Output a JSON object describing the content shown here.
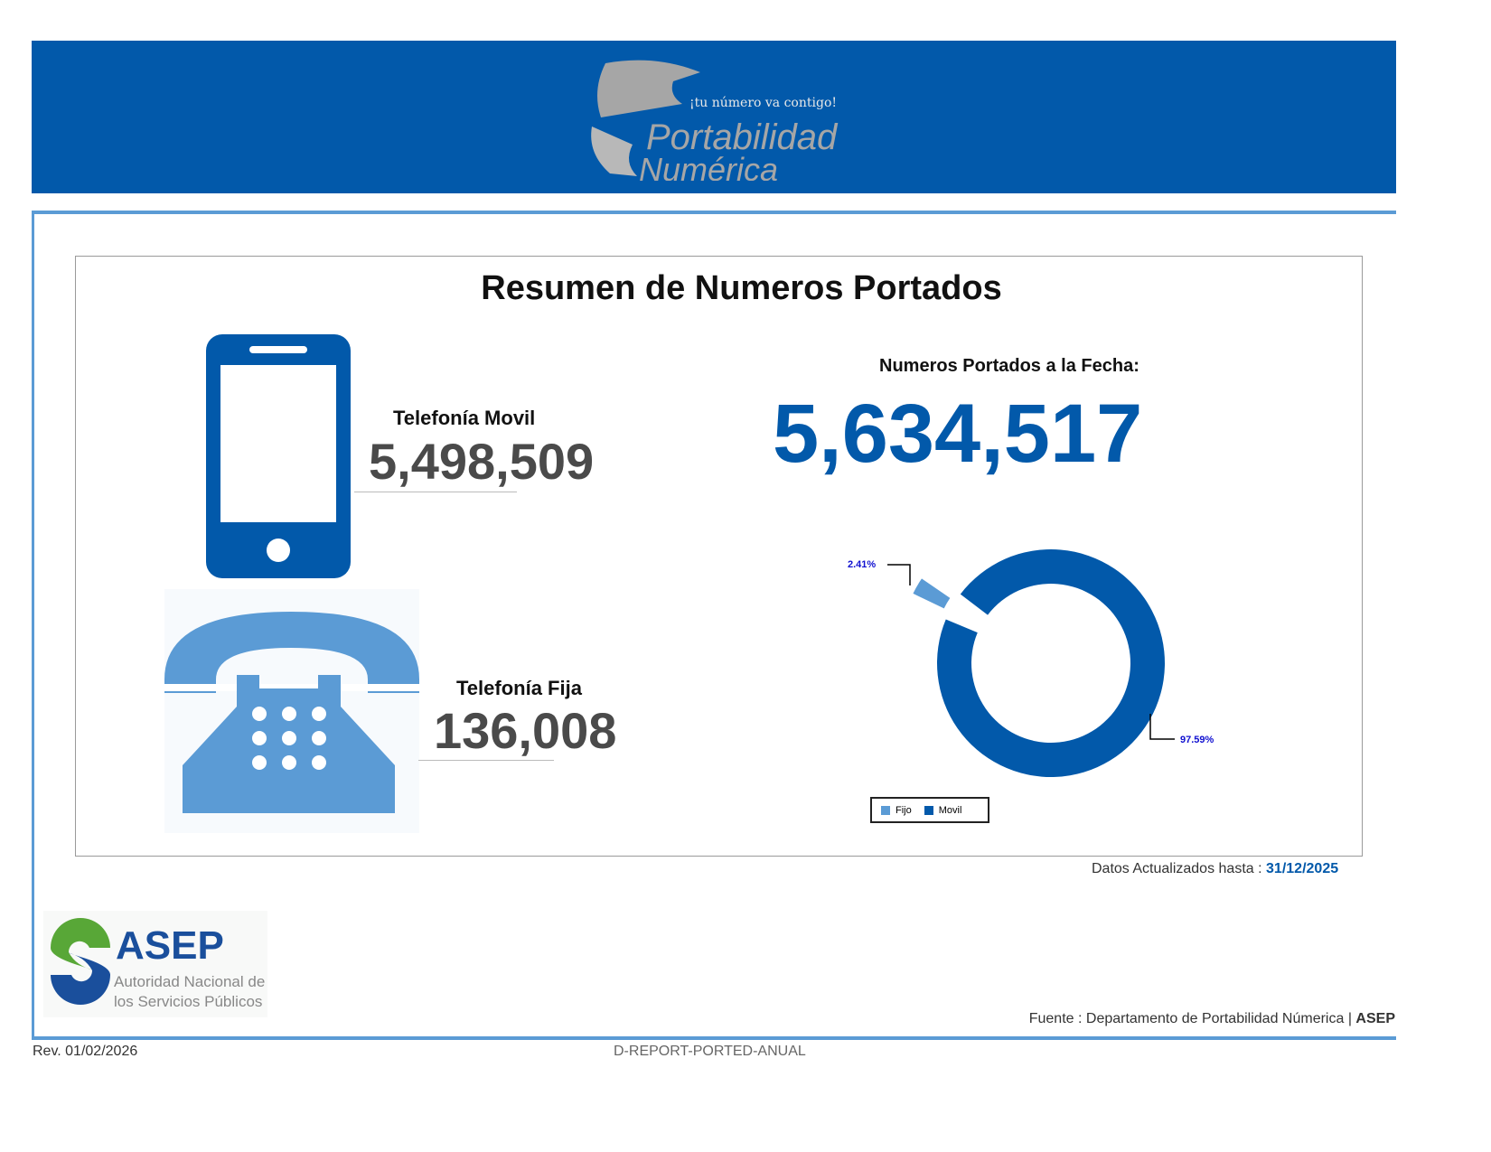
{
  "header": {
    "logo_tagline": "¡tu número va contigo!",
    "logo_line1": "Portabilidad",
    "logo_line2": "Numérica"
  },
  "report": {
    "title": "Resumen de Numeros Portados",
    "movil": {
      "label": "Telefonía Movil",
      "value": "5,498,509"
    },
    "fija": {
      "label": "Telefonía Fija",
      "value": "136,008"
    },
    "total": {
      "label": "Numeros Portados a la Fecha:",
      "value": "5,634,517"
    },
    "updated_label": "Datos Actualizados hasta",
    "updated_sep": ":",
    "updated_date": "31/12/2025"
  },
  "chart_data": {
    "type": "pie",
    "variant": "donut",
    "categories": [
      "Fijo",
      "Movil"
    ],
    "values": [
      2.41,
      97.59
    ],
    "data_labels": [
      "2.41%",
      "97.59%"
    ],
    "colors": [
      "#5b9bd5",
      "#0259aa"
    ],
    "exploded": "Fijo",
    "legend": "bottom"
  },
  "footer": {
    "asep_logo": "ASEP",
    "asep_sub1": "Autoridad Nacional de",
    "asep_sub2": "los Servicios Públicos",
    "source": "Fuente : Departamento de Portabilidad Númerica |",
    "source_bold": "ASEP",
    "revision": "Rev. 01/02/2026",
    "code": "D-REPORT-PORTED-ANUAL"
  }
}
